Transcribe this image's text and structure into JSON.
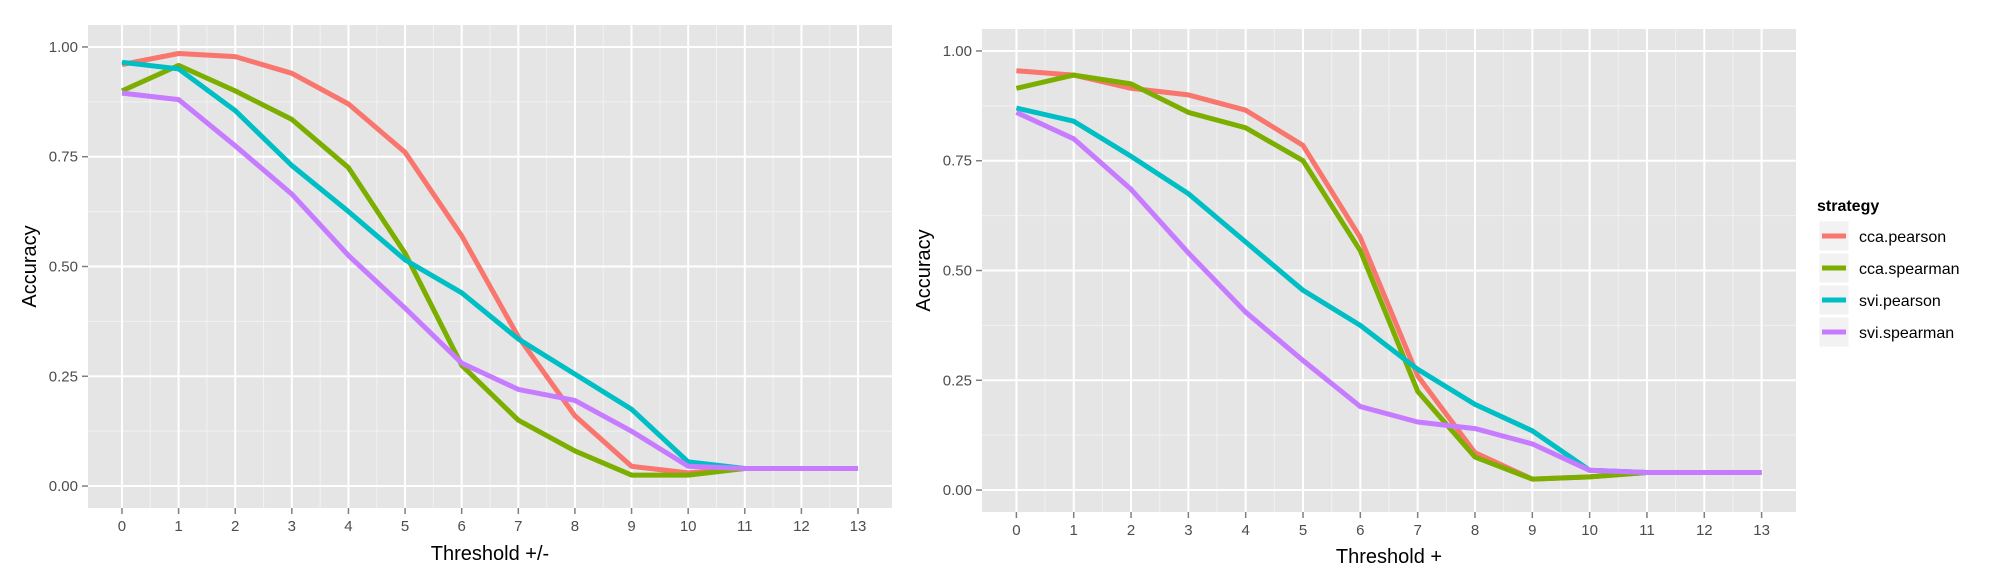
{
  "chart_data": [
    {
      "type": "line",
      "title": "",
      "xlabel": "Threshold +/-",
      "ylabel": "Accuracy",
      "x": [
        0,
        1,
        2,
        3,
        4,
        5,
        6,
        7,
        8,
        9,
        10,
        11,
        12,
        13
      ],
      "xlim": [
        -0.6,
        13.6
      ],
      "ylim": [
        -0.05,
        1.05
      ],
      "xticks": [
        0,
        1,
        2,
        3,
        4,
        5,
        6,
        7,
        8,
        9,
        10,
        11,
        12,
        13
      ],
      "yticks": [
        0,
        0.25,
        0.5,
        0.75,
        1
      ],
      "ytick_labels": [
        "0.00",
        "0.25",
        "0.50",
        "0.75",
        "1.00"
      ],
      "grid": true,
      "series": [
        {
          "name": "cca.pearson",
          "values": [
            0.96,
            0.985,
            0.978,
            0.94,
            0.87,
            0.76,
            0.57,
            0.34,
            0.16,
            0.045,
            0.03,
            0.04,
            0.04,
            0.04
          ]
        },
        {
          "name": "cca.spearman",
          "values": [
            0.9,
            0.958,
            0.9,
            0.835,
            0.725,
            0.53,
            0.275,
            0.15,
            0.08,
            0.025,
            0.025,
            0.04,
            0.04,
            0.04
          ]
        },
        {
          "name": "svi.pearson",
          "values": [
            0.965,
            0.95,
            0.855,
            0.73,
            0.625,
            0.515,
            0.44,
            0.335,
            0.255,
            0.175,
            0.055,
            0.04,
            0.04,
            0.04
          ]
        },
        {
          "name": "svi.spearman",
          "values": [
            0.895,
            0.88,
            0.775,
            0.665,
            0.525,
            0.405,
            0.28,
            0.22,
            0.195,
            0.125,
            0.045,
            0.04,
            0.04,
            0.04
          ]
        }
      ]
    },
    {
      "type": "line",
      "title": "",
      "xlabel": "Threshold +",
      "ylabel": "Accuracy",
      "x": [
        0,
        1,
        2,
        3,
        4,
        5,
        6,
        7,
        8,
        9,
        10,
        11,
        12,
        13
      ],
      "xlim": [
        -0.6,
        13.6
      ],
      "ylim": [
        -0.05,
        1.05
      ],
      "xticks": [
        0,
        1,
        2,
        3,
        4,
        5,
        6,
        7,
        8,
        9,
        10,
        11,
        12,
        13
      ],
      "yticks": [
        0,
        0.25,
        0.5,
        0.75,
        1
      ],
      "ytick_labels": [
        "0.00",
        "0.25",
        "0.50",
        "0.75",
        "1.00"
      ],
      "grid": true,
      "series": [
        {
          "name": "cca.pearson",
          "values": [
            0.955,
            0.945,
            0.915,
            0.9,
            0.865,
            0.785,
            0.575,
            0.26,
            0.085,
            0.025,
            0.03,
            0.04,
            0.04,
            0.04
          ]
        },
        {
          "name": "cca.spearman",
          "values": [
            0.915,
            0.945,
            0.925,
            0.86,
            0.825,
            0.75,
            0.545,
            0.225,
            0.075,
            0.025,
            0.03,
            0.04,
            0.04,
            0.04
          ]
        },
        {
          "name": "svi.pearson",
          "values": [
            0.87,
            0.84,
            0.76,
            0.675,
            0.565,
            0.455,
            0.375,
            0.275,
            0.195,
            0.135,
            0.045,
            0.04,
            0.04,
            0.04
          ]
        },
        {
          "name": "svi.spearman",
          "values": [
            0.86,
            0.8,
            0.685,
            0.54,
            0.405,
            0.295,
            0.19,
            0.155,
            0.14,
            0.105,
            0.045,
            0.04,
            0.04,
            0.04
          ]
        }
      ]
    }
  ],
  "legend": {
    "title": "strategy",
    "items": [
      "cca.pearson",
      "cca.spearman",
      "svi.pearson",
      "svi.spearman"
    ]
  },
  "colors": {
    "cca.pearson": "#F8766D",
    "cca.spearman": "#7CAE00",
    "svi.pearson": "#00BFC4",
    "svi.spearman": "#C77CFF",
    "panel_background": "#E5E5E5",
    "major_grid": "#FFFFFF",
    "minor_grid": "#F2F2F2"
  }
}
